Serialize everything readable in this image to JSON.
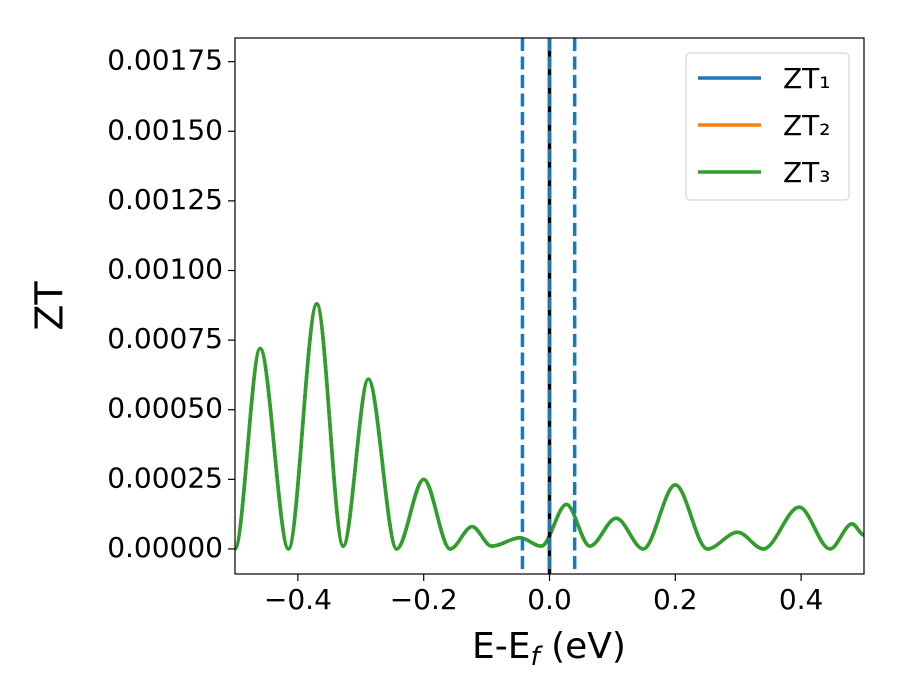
{
  "chart_data": {
    "type": "line",
    "xlabel": [
      "E-E",
      "f",
      " (eV)"
    ],
    "ylabel": "ZT",
    "x": [
      -0.5,
      -0.46,
      -0.415,
      -0.37,
      -0.328,
      -0.288,
      -0.243,
      -0.2,
      -0.158,
      -0.123,
      -0.092,
      -0.047,
      -0.013,
      0.027,
      0.064,
      0.106,
      0.149,
      0.2,
      0.251,
      0.299,
      0.34,
      0.397,
      0.446,
      0.481,
      0.5
    ],
    "series": [
      {
        "name": "ZT₁",
        "color": "#1f77b4",
        "values": [
          0,
          0.00072,
          0,
          0.00088,
          1e-05,
          0.00061,
          0,
          0.00025,
          0,
          8e-05,
          1e-05,
          4e-05,
          1e-05,
          0.00016,
          1e-05,
          0.00011,
          0,
          0.00023,
          0,
          6e-05,
          0,
          0.00015,
          0,
          9e-05,
          5e-05
        ]
      },
      {
        "name": "ZT₂",
        "color": "#ff7f0e",
        "values": [
          0,
          0.00072,
          0,
          0.00088,
          1e-05,
          0.00061,
          0,
          0.00025,
          0,
          8e-05,
          1e-05,
          4e-05,
          1e-05,
          0.00016,
          1e-05,
          0.00011,
          0,
          0.00023,
          0,
          6e-05,
          0,
          0.00015,
          0,
          9e-05,
          5e-05
        ]
      },
      {
        "name": "ZT₃",
        "color": "#2ca02c",
        "values": [
          0,
          0.00072,
          0,
          0.00088,
          1e-05,
          0.00061,
          0,
          0.00025,
          0,
          8e-05,
          1e-05,
          4e-05,
          1e-05,
          0.00016,
          1e-05,
          0.00011,
          0,
          0.00023,
          0,
          6e-05,
          0,
          0.00015,
          0,
          9e-05,
          5e-05
        ]
      }
    ],
    "vlines": [
      {
        "x": 0,
        "color": "#000000",
        "style": "solid"
      },
      {
        "x": -0.043,
        "color": "#1f77b4",
        "style": "dashed"
      },
      {
        "x": 0.04,
        "color": "#1f77b4",
        "style": "dashed"
      },
      {
        "x": 0,
        "color": "#1f77b4",
        "style": "dashed"
      }
    ],
    "xlim": [
      -0.5,
      0.5
    ],
    "ylim": [
      -9e-05,
      0.001835
    ],
    "xticks": [
      {
        "value": -0.4,
        "label": "−0.4"
      },
      {
        "value": -0.2,
        "label": "−0.2"
      },
      {
        "value": 0,
        "label": "0.0"
      },
      0.2,
      0.4
    ],
    "yticks": [
      {
        "value": 0,
        "label": "0.00000"
      },
      {
        "value": 0.00025,
        "label": "0.00025"
      },
      {
        "value": 0.0005,
        "label": "0.00050"
      },
      {
        "value": 0.00075,
        "label": "0.00075"
      },
      {
        "value": 0.001,
        "label": "0.00100"
      },
      {
        "value": 0.00125,
        "label": "0.00125"
      },
      {
        "value": 0.0015,
        "label": "0.00150"
      },
      {
        "value": 0.00175,
        "label": "0.00175"
      }
    ],
    "grid": false,
    "legend": "upper right"
  }
}
